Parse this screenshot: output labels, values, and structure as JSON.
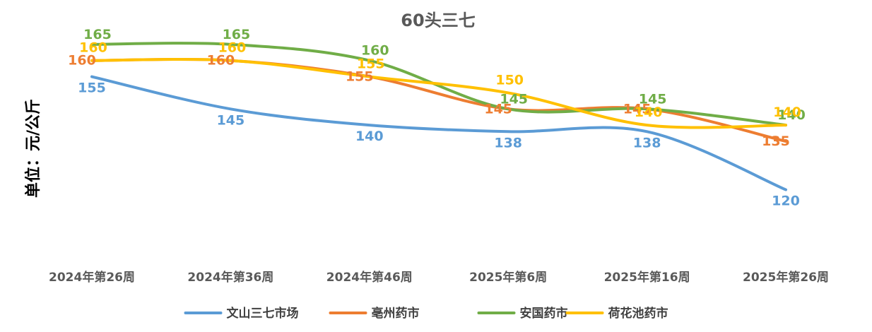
{
  "chart_data": {
    "type": "line",
    "title": "60头三七",
    "ylabel": "单位：元/公斤",
    "xlabel": "",
    "categories": [
      "2024年第26周",
      "2024年第36周",
      "2024年第46周",
      "2025年第6周",
      "2025年第16周",
      "2025年第26周"
    ],
    "ylim": [
      100,
      170
    ],
    "grid": false,
    "legend_position": "bottom",
    "smooth": true,
    "series": [
      {
        "name": "文山三七市场",
        "color": "#5B9BD5",
        "values": [
          155,
          145,
          140,
          138,
          138,
          120
        ]
      },
      {
        "name": "亳州药市",
        "color": "#ED7D31",
        "values": [
          160,
          160,
          155,
          145,
          145,
          135
        ]
      },
      {
        "name": "安国药市",
        "color": "#70AD47",
        "values": [
          165,
          165,
          160,
          145,
          145,
          140
        ]
      },
      {
        "name": "荷花池药市",
        "color": "#FFC000",
        "values": [
          160,
          160,
          155,
          150,
          140,
          140
        ]
      }
    ]
  }
}
